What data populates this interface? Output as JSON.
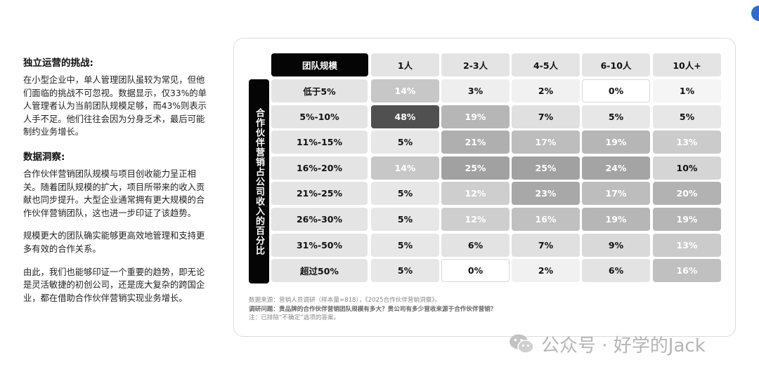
{
  "left_panel": {
    "section1_title": "独立运营的挑战:",
    "section1_body": "在小型企业中，单人管理团队虽较为常见，但他们面临的挑战不可忽视。数据显示，仅33%的单人管理者认为当前团队规模足够，而43%则表示人手不足。他们往往会因为分身乏术，最后可能制约业务增长。",
    "section2_title": "数据洞察:",
    "section2_para1": "合作伙伴营销团队规模与项目创收能力呈正相关。随着团队规模的扩大，项目所带来的收入贡献也同步提升。大型企业通常拥有更大规模的合作伙伴营销团队，这也进一步印证了该趋势。",
    "section2_para2": "规模更大的团队确实能够更高效地管理和支持更多有效的合作关系。",
    "section2_para3": "由此，我们也能够印证一个重要的趋势，即无论是灵活敏捷的初创公司，还是庞大复杂的跨国企业，都在借助合作伙伴营销实现业务增长。"
  },
  "chart_data": {
    "type": "heatmap",
    "x_header": "团队规模",
    "y_label": "合作伙伴营销占公司收入的百分比",
    "columns": [
      "1人",
      "2-3人",
      "4-5人",
      "6-10人",
      "10人+"
    ],
    "rows": [
      "低于5%",
      "5%-10%",
      "11%-15%",
      "16%-20%",
      "21%-25%",
      "26%-30%",
      "31%-50%",
      "超过50%"
    ],
    "values": [
      [
        14,
        3,
        2,
        0,
        1
      ],
      [
        48,
        19,
        7,
        5,
        5
      ],
      [
        5,
        21,
        17,
        19,
        13
      ],
      [
        14,
        25,
        25,
        24,
        10
      ],
      [
        5,
        12,
        23,
        17,
        20
      ],
      [
        5,
        12,
        16,
        19,
        19
      ],
      [
        5,
        6,
        7,
        9,
        13
      ],
      [
        5,
        0,
        2,
        6,
        16
      ]
    ],
    "unit": "%"
  },
  "notes": {
    "source": "数据来源：营销人员调研（样本量=818），《2025合作伙伴营销洞察》。",
    "question": "调研问题：贵品牌的合作伙伴营销团队规模有多大？贵公司有多少营收来源于合作伙伴营销？",
    "note": "注：已排除“不确定”选项的答案。"
  },
  "watermark": {
    "text": "公众号 · 好学的Jack",
    "icon": "wechat-icon"
  },
  "colors": {
    "header_dark": "#050505",
    "header_light": "#e4e4e4",
    "corner_dot": "#2d6ad8"
  }
}
